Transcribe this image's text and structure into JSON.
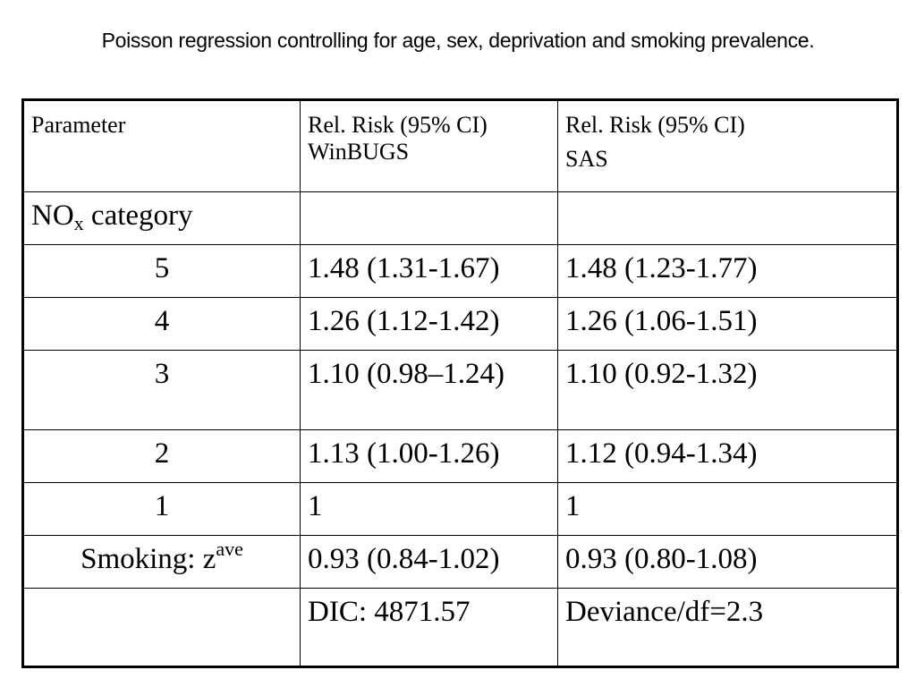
{
  "title": "Poisson regression controlling for age, sex, deprivation and smoking prevalence.",
  "header": {
    "parameter": "Parameter",
    "winbugs_line1": "Rel. Risk (95% CI)",
    "winbugs_line2": "WinBUGS",
    "sas_line1": "Rel. Risk (95% CI)",
    "sas_line2": "SAS"
  },
  "nox": {
    "prefix": "NO",
    "subscript": "x",
    "suffix": " category",
    "winbugs": "",
    "sas": ""
  },
  "rows": [
    {
      "parameter": "5",
      "winbugs": "1.48 (1.31-1.67)",
      "sas": "1.48 (1.23-1.77)"
    },
    {
      "parameter": "4",
      "winbugs": "1.26 (1.12-1.42)",
      "sas": "1.26 (1.06-1.51)"
    },
    {
      "parameter": "3",
      "winbugs": "1.10 (0.98–1.24)",
      "sas": "1.10 (0.92-1.32)"
    },
    {
      "parameter": "2",
      "winbugs": "1.13 (1.00-1.26)",
      "sas": "1.12 (0.94-1.34)"
    },
    {
      "parameter": "1",
      "winbugs": "1",
      "sas": "1"
    }
  ],
  "smoking": {
    "label": "Smoking: z",
    "superscript": "ave",
    "winbugs": "0.93 (0.84-1.02)",
    "sas": "0.93 (0.80-1.08)"
  },
  "fit": {
    "parameter": "",
    "winbugs": "DIC: 4871.57",
    "sas": "Deviance/df=2.3"
  }
}
